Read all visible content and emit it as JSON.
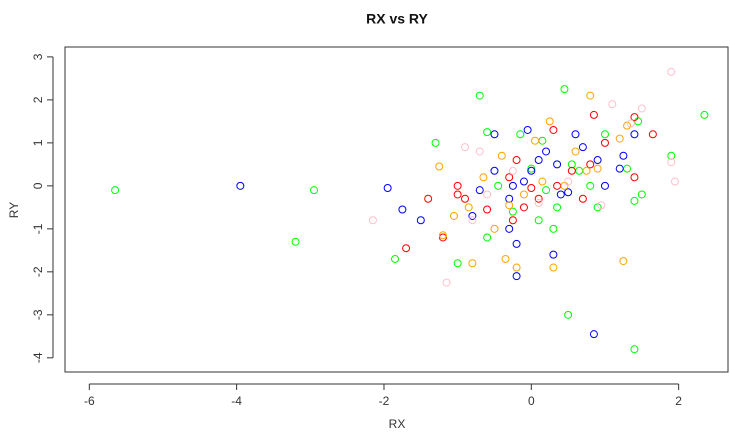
{
  "chart_data": {
    "type": "scatter",
    "title": "RX vs RY",
    "x_label": "RX",
    "y_label": "RY",
    "xlim": [
      -6.33,
      2.67
    ],
    "ylim": [
      -4.33,
      3.23
    ],
    "xticks": [
      -6,
      -4,
      -2,
      0,
      2
    ],
    "yticks": [
      -4,
      -3,
      -2,
      -1,
      0,
      1,
      2,
      3
    ],
    "series": [
      {
        "color": "#00ff00",
        "x": [
          -5.65,
          -2.95,
          -3.2,
          -1.85,
          2.35,
          0.5,
          1.4,
          1.9,
          -0.7,
          0.45,
          -1.3,
          1.45,
          1.5,
          1.4,
          -1.0,
          -0.6,
          -0.15,
          0.3,
          0.35,
          0.8,
          0.9,
          1.0,
          0.1,
          -0.6,
          0.55,
          0.2,
          0.65,
          -0.45,
          0.0,
          1.3,
          0.15,
          -0.25
        ],
        "values": [
          -0.1,
          -0.1,
          -1.3,
          -1.7,
          1.65,
          -3.0,
          -3.8,
          0.7,
          2.1,
          2.25,
          1.0,
          1.5,
          -0.2,
          -0.35,
          -1.8,
          1.25,
          1.2,
          -1.0,
          -0.5,
          0.0,
          -0.5,
          1.2,
          -0.8,
          -1.2,
          0.5,
          -0.1,
          0.35,
          0.0,
          0.4,
          0.4,
          1.05,
          -0.6
        ]
      },
      {
        "color": "#0000ff",
        "x": [
          -3.95,
          -1.95,
          -1.75,
          -1.5,
          0.85,
          -0.2,
          0.3,
          -0.2,
          -0.5,
          -0.05,
          0.6,
          1.4,
          -0.5,
          -0.7,
          0.35,
          0.0,
          -0.3,
          0.2,
          0.7,
          1.0,
          1.2,
          -0.25,
          0.5,
          -0.8,
          0.1,
          -0.3,
          0.9,
          1.25,
          -0.1,
          0.4
        ],
        "values": [
          0.0,
          -0.05,
          -0.55,
          -0.8,
          -3.45,
          -2.1,
          -1.6,
          -1.35,
          1.2,
          1.3,
          1.2,
          1.2,
          0.35,
          -0.1,
          0.5,
          0.35,
          -0.3,
          0.8,
          0.9,
          0.0,
          0.4,
          0.0,
          -0.15,
          -0.7,
          0.6,
          -1.0,
          0.6,
          0.7,
          0.1,
          -0.2
        ]
      },
      {
        "color": "#ff0000",
        "x": [
          -1.7,
          -1.2,
          -1.0,
          -1.0,
          0.0,
          0.85,
          1.65,
          1.4,
          0.3,
          1.0,
          1.4,
          -0.6,
          -0.2,
          -0.25,
          0.1,
          0.7,
          -0.3,
          -0.1,
          0.55,
          -1.4,
          0.35,
          -0.9,
          0.8
        ],
        "values": [
          -1.45,
          -1.2,
          -0.2,
          0.0,
          -0.05,
          1.65,
          1.2,
          1.6,
          1.3,
          1.0,
          0.2,
          -0.55,
          0.6,
          -0.8,
          -0.3,
          -0.3,
          0.2,
          -0.5,
          0.35,
          -0.3,
          0.0,
          -0.3,
          0.5
        ]
      },
      {
        "color": "#ffa500",
        "x": [
          -1.25,
          -1.2,
          -0.35,
          -0.2,
          0.3,
          1.25,
          -0.8,
          0.8,
          0.25,
          1.3,
          1.2,
          -0.4,
          -1.05,
          -0.85,
          -0.5,
          0.6,
          0.9,
          -0.1,
          0.05,
          -0.65,
          0.45,
          0.75,
          -0.3,
          0.15
        ],
        "values": [
          0.45,
          -1.15,
          -1.7,
          -1.9,
          -1.9,
          -1.75,
          -1.8,
          2.1,
          1.5,
          1.4,
          1.1,
          0.7,
          -0.7,
          -0.5,
          -1.0,
          0.8,
          0.4,
          -0.2,
          1.05,
          0.2,
          0.0,
          0.35,
          -0.45,
          0.1
        ]
      },
      {
        "color": "#ffc0cb",
        "x": [
          -2.15,
          -1.15,
          -0.8,
          -0.7,
          1.9,
          1.95,
          1.9,
          1.1,
          1.5,
          0.95,
          -0.25,
          -0.6,
          0.5,
          0.1,
          -0.9,
          1.35
        ],
        "values": [
          -0.8,
          -2.25,
          -0.8,
          0.8,
          2.65,
          0.1,
          0.55,
          1.9,
          1.8,
          -0.45,
          0.35,
          -0.2,
          0.1,
          -0.4,
          0.9,
          1.45
        ]
      }
    ]
  }
}
